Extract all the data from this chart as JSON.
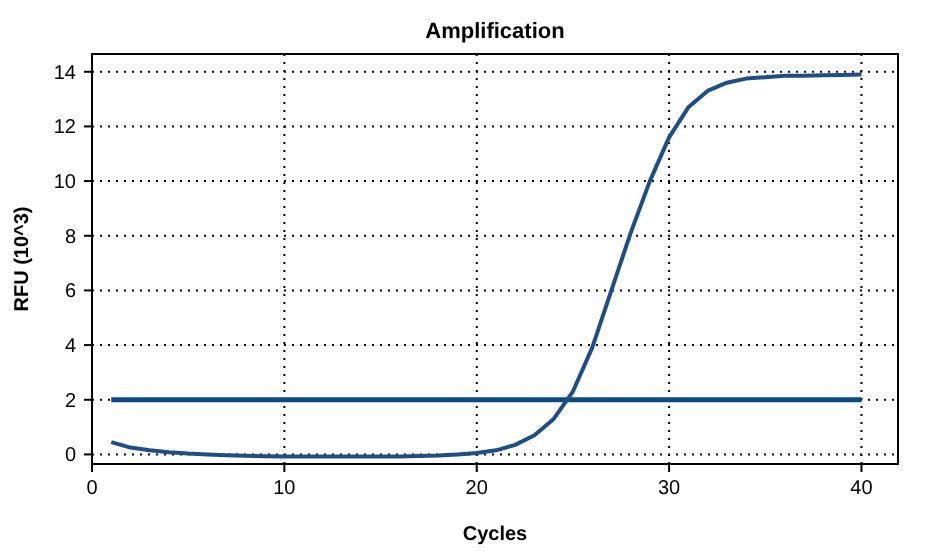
{
  "chart_data": {
    "type": "line",
    "title": "Amplification",
    "xlabel": "Cycles",
    "ylabel": "RFU (10^3)",
    "xlim": [
      0,
      41.9
    ],
    "ylim": [
      -0.35,
      14.65
    ],
    "xticks": [
      0,
      10,
      20,
      30,
      40
    ],
    "yticks": [
      0,
      2,
      4,
      6,
      8,
      10,
      12,
      14
    ],
    "grid": true,
    "marker": "none",
    "line_style": "solid",
    "series": [
      {
        "color": "#1f4e85",
        "x": [
          1,
          2,
          3,
          4,
          5,
          6,
          7,
          8,
          9,
          10,
          11,
          12,
          13,
          14,
          15,
          16,
          17,
          18,
          19,
          20,
          21,
          22,
          23,
          24,
          25,
          26,
          27,
          28,
          29,
          30,
          31,
          32,
          33,
          34,
          35,
          36,
          37,
          38,
          39,
          40
        ],
        "values": [
          0.45,
          0.25,
          0.15,
          0.08,
          0.03,
          0,
          -0.03,
          -0.05,
          -0.07,
          -0.08,
          -0.08,
          -0.08,
          -0.08,
          -0.08,
          -0.08,
          -0.08,
          -0.06,
          -0.04,
          0,
          0.05,
          0.15,
          0.35,
          0.7,
          1.3,
          2.3,
          3.9,
          6.0,
          8.1,
          10.0,
          11.6,
          12.7,
          13.3,
          13.6,
          13.75,
          13.8,
          13.85,
          13.85,
          13.87,
          13.88,
          13.9
        ]
      }
    ],
    "ref_lines": [
      {
        "axis": "y",
        "value": 2,
        "color": "#0b4a80"
      }
    ]
  }
}
